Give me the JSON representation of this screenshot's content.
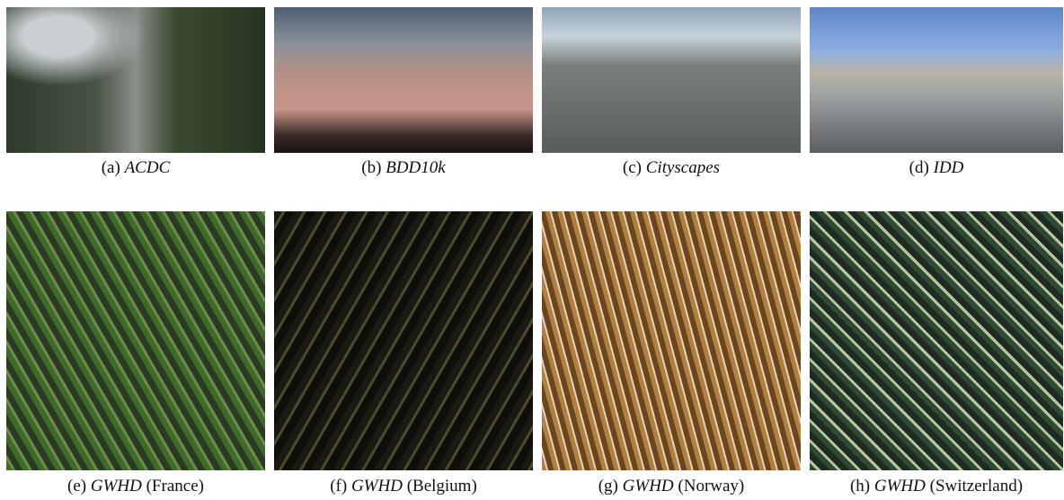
{
  "figure": {
    "panels": [
      {
        "label": "(a)",
        "name": "ACDC"
      },
      {
        "label": "(b)",
        "name": "BDD10k"
      },
      {
        "label": "(c)",
        "name": "Cityscapes"
      },
      {
        "label": "(d)",
        "name": "IDD"
      },
      {
        "label": "(e)",
        "name": "GWHD",
        "detail": "(France)"
      },
      {
        "label": "(f)",
        "name": "GWHD",
        "detail": "(Belgium)"
      },
      {
        "label": "(g)",
        "name": "GWHD",
        "detail": "(Norway)"
      },
      {
        "label": "(h)",
        "name": "GWHD",
        "detail": "(Switzerland)"
      }
    ]
  }
}
